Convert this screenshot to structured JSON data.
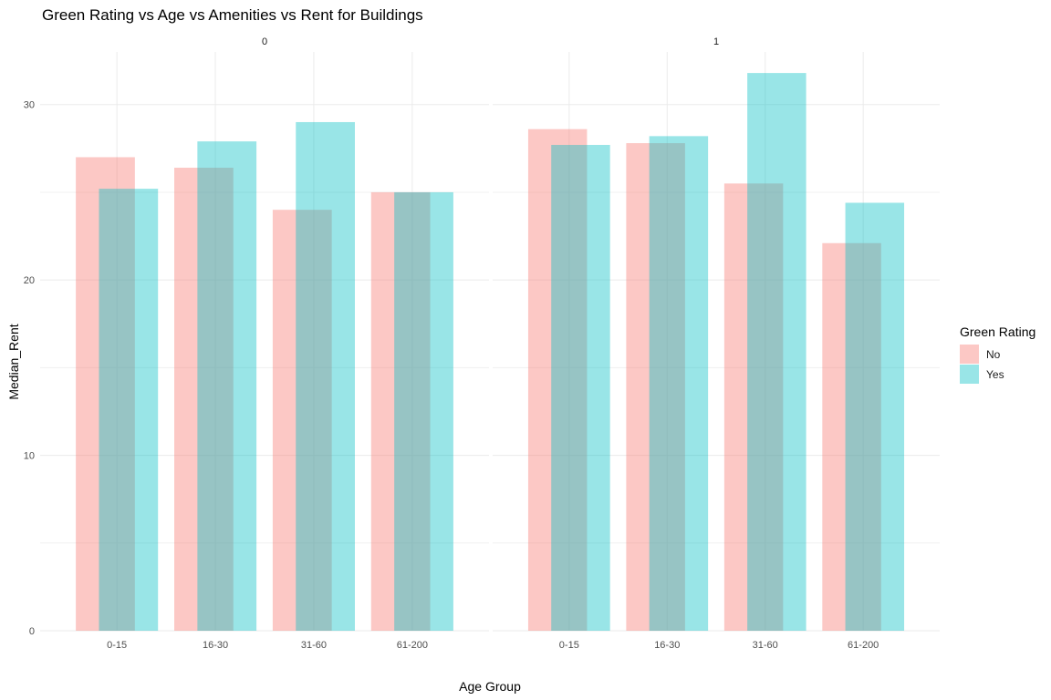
{
  "chart_data": {
    "type": "bar",
    "title": "Green Rating vs Age vs Amenities vs Rent for Buildings",
    "xlabel": "Age Group",
    "ylabel": "Median_Rent",
    "ylim": [
      0,
      33
    ],
    "yticks": [
      0,
      10,
      20,
      30
    ],
    "grid": true,
    "legend_title": "Green Rating",
    "legend_position": "right",
    "categories": [
      "0-15",
      "16-30",
      "31-60",
      "61-200"
    ],
    "facets": [
      {
        "label": "0",
        "series": [
          {
            "name": "No",
            "color": "#F8766D",
            "values": [
              27.0,
              26.4,
              24.0,
              25.0
            ]
          },
          {
            "name": "Yes",
            "color": "#00BFC4",
            "values": [
              25.2,
              27.9,
              29.0,
              25.0
            ]
          }
        ]
      },
      {
        "label": "1",
        "series": [
          {
            "name": "No",
            "color": "#F8766D",
            "values": [
              28.6,
              27.8,
              25.5,
              22.1
            ]
          },
          {
            "name": "Yes",
            "color": "#00BFC4",
            "values": [
              27.7,
              28.2,
              31.8,
              24.4
            ]
          }
        ]
      }
    ]
  }
}
